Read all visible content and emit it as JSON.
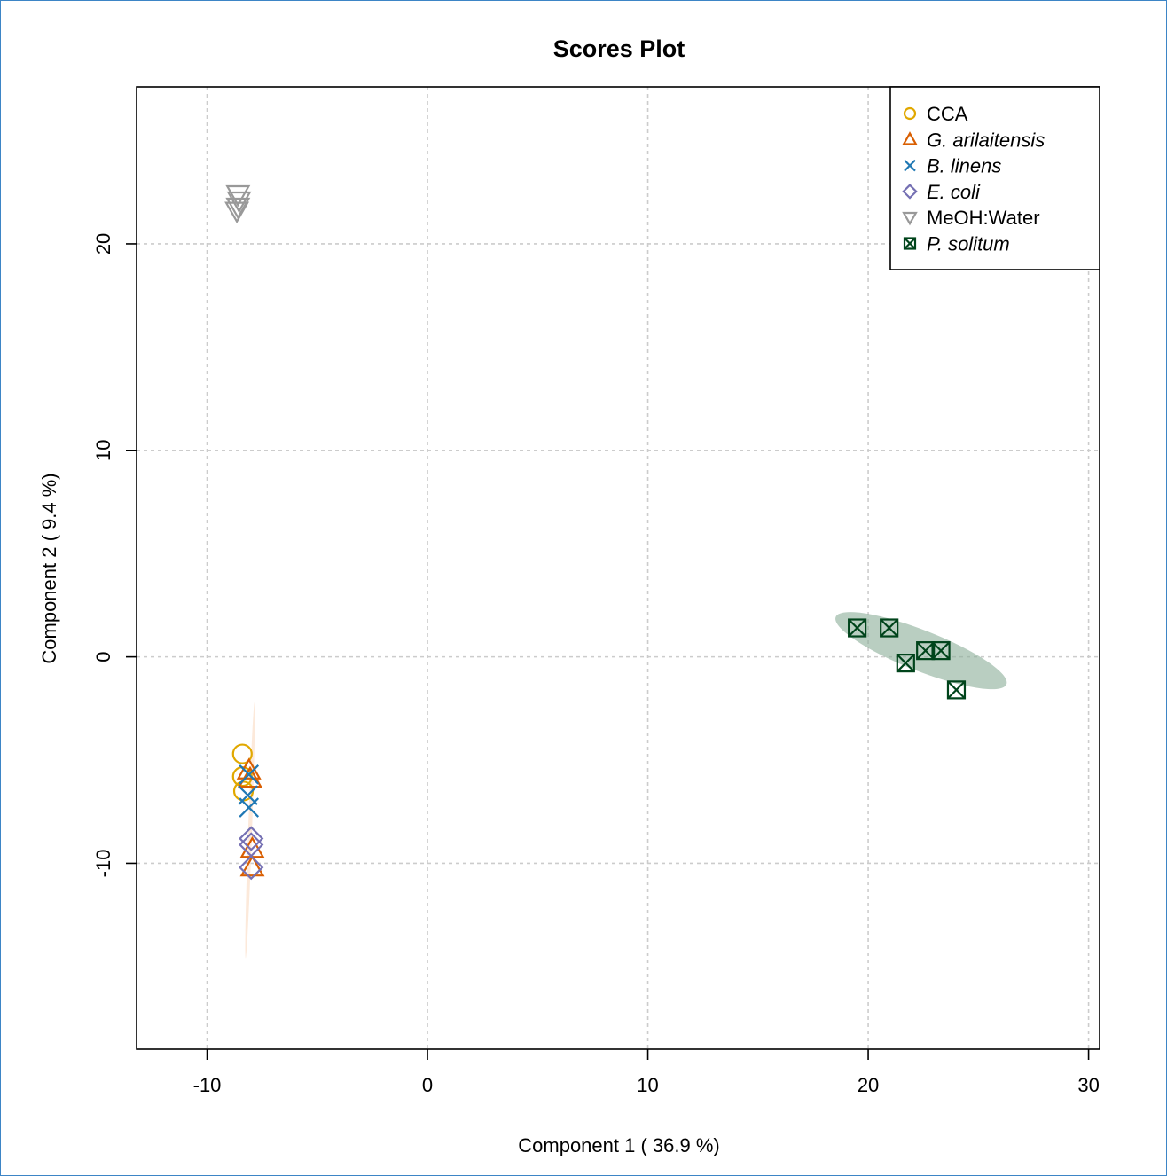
{
  "chart_data": {
    "type": "scatter",
    "title": "Scores Plot",
    "xlabel": "Component 1 ( 36.9 %)",
    "ylabel": "Component 2 ( 9.4 %)",
    "xlim": [
      -13.2,
      30.5
    ],
    "ylim": [
      -19.0,
      27.6
    ],
    "x_ticks": [
      -10,
      0,
      10,
      20,
      30
    ],
    "y_ticks": [
      -10,
      0,
      10,
      20
    ],
    "grid": true,
    "legend_position": "top-right",
    "series": [
      {
        "name": "CCA",
        "italic": false,
        "marker": "circle",
        "color": "#e1a800",
        "points": [
          [
            -8.4,
            -4.7
          ],
          [
            -8.4,
            -5.8
          ],
          [
            -8.35,
            -6.5
          ]
        ],
        "ellipse": null
      },
      {
        "name": "G. arilaitensis",
        "italic": true,
        "marker": "triangle-up",
        "color": "#d95f02",
        "points": [
          [
            -8.1,
            -5.5
          ],
          [
            -8.05,
            -5.9
          ],
          [
            -7.95,
            -9.3
          ],
          [
            -7.95,
            -10.2
          ]
        ],
        "ellipse": {
          "cx": -8.05,
          "cy": -8.4,
          "rx": 6.0,
          "ry": 0.09,
          "angle_deg": 88.0,
          "fill": "#fbe3d1",
          "opacity": 0.8
        }
      },
      {
        "name": "B. linens",
        "italic": true,
        "marker": "x",
        "color": "#1f78b4",
        "points": [
          [
            -8.1,
            -5.7
          ],
          [
            -8.15,
            -6.7
          ],
          [
            -8.1,
            -7.3
          ]
        ],
        "ellipse": null
      },
      {
        "name": "E. coli",
        "italic": true,
        "marker": "diamond",
        "color": "#7570b3",
        "points": [
          [
            -8.0,
            -8.8
          ],
          [
            -8.0,
            -9.1
          ],
          [
            -8.0,
            -10.2
          ]
        ],
        "ellipse": null
      },
      {
        "name": "MeOH:Water",
        "italic": false,
        "marker": "triangle-down",
        "color": "#999999",
        "points": [
          [
            -8.6,
            22.4
          ],
          [
            -8.55,
            22.1
          ],
          [
            -8.6,
            21.8
          ],
          [
            -8.65,
            21.6
          ]
        ],
        "ellipse": null
      },
      {
        "name": "P. solitum",
        "italic": true,
        "marker": "square-x",
        "color": "#00441b",
        "points": [
          [
            19.5,
            1.4
          ],
          [
            20.95,
            1.4
          ],
          [
            21.7,
            -0.3
          ],
          [
            22.6,
            0.3
          ],
          [
            23.3,
            0.3
          ],
          [
            24.0,
            -1.6
          ]
        ],
        "ellipse": {
          "cx": 22.4,
          "cy": 0.3,
          "rx": 4.3,
          "ry": 0.95,
          "angle_deg": -21.5,
          "fill": "#8aad98",
          "opacity": 0.6
        }
      }
    ]
  }
}
